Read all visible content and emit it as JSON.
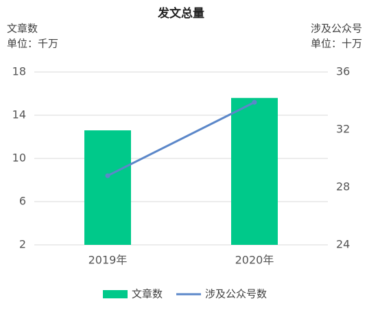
{
  "chart_data": {
    "type": "bar",
    "title": "发文总量",
    "ylabel": "文章数",
    "yunit": "单位：千万",
    "y2label": "涉及公众号",
    "y2unit": "单位：十万",
    "categories": [
      "2019年",
      "2020年"
    ],
    "series": [
      {
        "name": "文章数",
        "type": "bar",
        "color": "#00c98a",
        "values": [
          12.6,
          15.6
        ]
      },
      {
        "name": "涉及公众号数",
        "type": "line",
        "axis": "y2",
        "color": "#5b87c9",
        "values": [
          28.8,
          33.9
        ]
      }
    ],
    "ylim": [
      2,
      18
    ],
    "yticks": [
      2,
      6,
      10,
      14,
      18
    ],
    "y2lim": [
      24,
      36
    ],
    "y2ticks": [
      24,
      28,
      32,
      36
    ],
    "grid": true,
    "legend": "bottom"
  }
}
